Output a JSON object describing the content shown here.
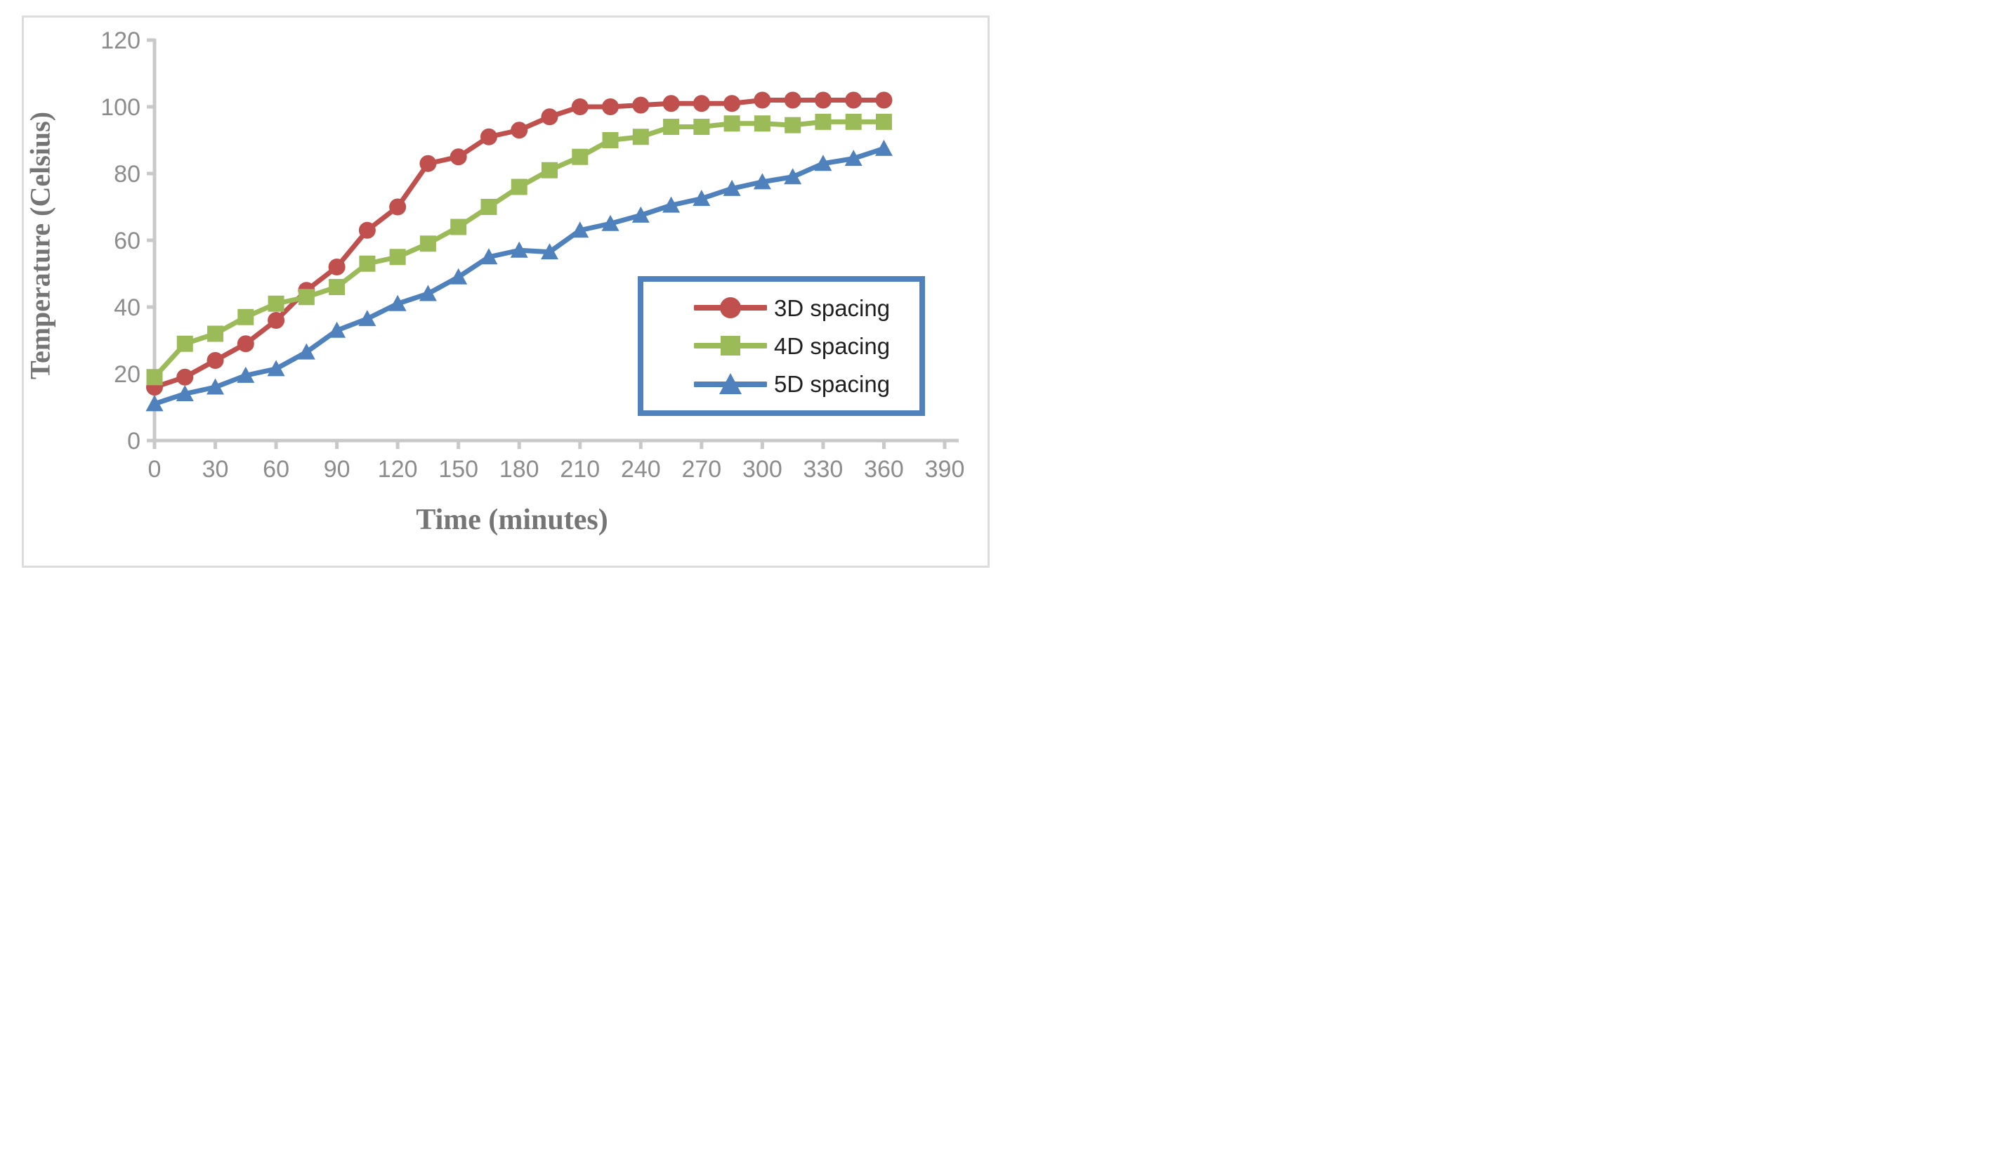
{
  "figure": {
    "background_color": "#ffffff",
    "frame_color": "#dcdcdc"
  },
  "chart_data": {
    "type": "line",
    "title": "",
    "xlabel": "Time (minutes)",
    "ylabel": "Temperature (Celsius)",
    "xlim": [
      0,
      390
    ],
    "ylim": [
      0,
      120
    ],
    "x_ticks": [
      0,
      30,
      60,
      90,
      120,
      150,
      180,
      210,
      240,
      270,
      300,
      330,
      360,
      390
    ],
    "y_ticks": [
      0,
      20,
      40,
      60,
      80,
      100,
      120
    ],
    "grid": false,
    "legend_position": "middle-right",
    "x": [
      0,
      15,
      30,
      45,
      60,
      75,
      90,
      105,
      120,
      135,
      150,
      165,
      180,
      195,
      210,
      225,
      240,
      255,
      270,
      285,
      300,
      315,
      330,
      345,
      360
    ],
    "series": [
      {
        "name": "3D spacing",
        "marker": "circle",
        "color": "#c0504d",
        "values": [
          16,
          19,
          24,
          29,
          36,
          45,
          52,
          63,
          70,
          83,
          85,
          91,
          93,
          97,
          100,
          100,
          100.5,
          101,
          101,
          101,
          102,
          102,
          102,
          102,
          102
        ]
      },
      {
        "name": "4D spacing",
        "marker": "square",
        "color": "#9bbb59",
        "values": [
          19,
          29,
          32,
          37,
          41,
          43,
          46,
          53,
          55,
          59,
          64,
          70,
          76,
          81,
          85,
          90,
          91,
          94,
          94,
          95,
          95,
          94.5,
          95.5,
          95.5,
          95.5
        ]
      },
      {
        "name": "5D spacing",
        "marker": "triangle",
        "color": "#4f81bd",
        "values": [
          11,
          14,
          16,
          19.5,
          21.5,
          26.5,
          33,
          36.5,
          41,
          44,
          49,
          55,
          57,
          56.5,
          63,
          65,
          67.5,
          70.5,
          72.5,
          75.5,
          77.5,
          79,
          83,
          84.5,
          87.5
        ]
      }
    ],
    "axis_color": "#c9c9c9",
    "tick_label_color": "#8c8c8c",
    "axis_title_color": "#757575",
    "legend_border_color": "#4f81bd",
    "legend_text_color": "#1f1f1f"
  }
}
